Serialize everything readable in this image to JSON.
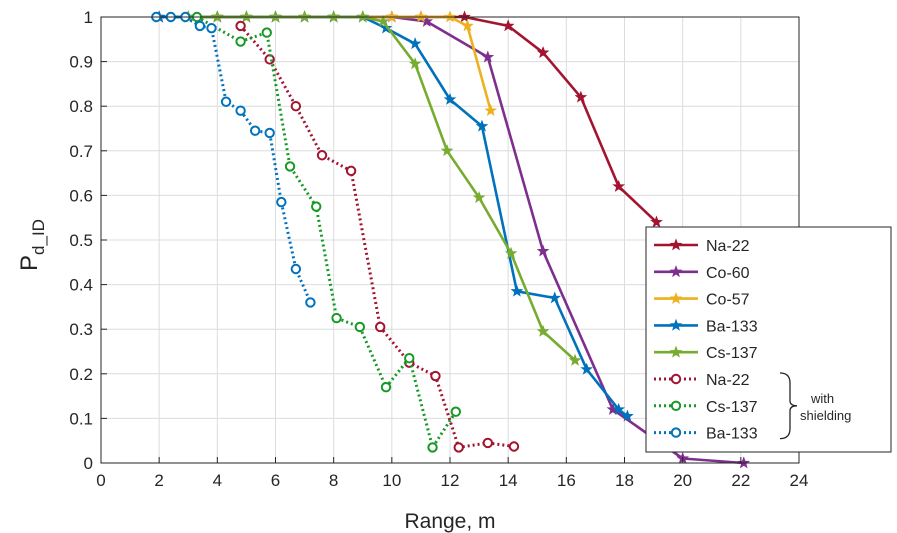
{
  "chart_data": {
    "type": "line",
    "title": "",
    "xlabel": "Range, m",
    "ylabel_main": "P",
    "ylabel_sub": "d_ID",
    "xlim": [
      0,
      24
    ],
    "ylim": [
      0,
      1
    ],
    "xticks": [
      0,
      2,
      4,
      6,
      8,
      10,
      12,
      14,
      16,
      18,
      20,
      22,
      24
    ],
    "yticks": [
      0,
      0.1,
      0.2,
      0.3,
      0.4,
      0.5,
      0.6,
      0.7,
      0.8,
      0.9,
      1
    ],
    "grid": true,
    "legend_position": "bottom-right",
    "legend_annotation": [
      "with",
      "shielding"
    ],
    "series": [
      {
        "name": "Na-22",
        "color": "#a2142f",
        "style": "solid",
        "marker": "star",
        "x": [
          2,
          3,
          4,
          5,
          6,
          7,
          8,
          9,
          10,
          11,
          12.5,
          14,
          15.2,
          16.5,
          17.8,
          19.1
        ],
        "y": [
          1,
          1,
          1,
          1,
          1,
          1,
          1,
          1,
          1,
          1,
          1,
          0.98,
          0.92,
          0.82,
          0.62,
          0.54
        ]
      },
      {
        "name": "Co-60",
        "color": "#7e2f8e",
        "style": "solid",
        "marker": "star",
        "x": [
          2,
          4,
          6,
          8,
          10,
          11.2,
          13.3,
          15.2,
          17.6,
          20,
          22.1
        ],
        "y": [
          1,
          1,
          1,
          1,
          1,
          0.99,
          0.91,
          0.475,
          0.12,
          0.01,
          0
        ]
      },
      {
        "name": "Co-57",
        "color": "#edb120",
        "style": "solid",
        "marker": "star",
        "x": [
          3,
          4,
          5,
          6,
          7,
          8,
          9,
          10,
          11,
          12,
          12.6,
          13.4
        ],
        "y": [
          1,
          1,
          1,
          1,
          1,
          1,
          1,
          1,
          1,
          1,
          0.98,
          0.79
        ]
      },
      {
        "name": "Ba-133",
        "color": "#0072bd",
        "style": "solid",
        "marker": "star",
        "x": [
          2,
          3,
          4,
          5,
          6,
          7,
          8,
          9,
          9.8,
          10.8,
          12,
          13.1,
          14.3,
          15.6,
          16.7,
          17.8,
          18.1
        ],
        "y": [
          1,
          1,
          1,
          1,
          1,
          1,
          1,
          1,
          0.975,
          0.94,
          0.815,
          0.755,
          0.385,
          0.37,
          0.21,
          0.12,
          0.105
        ]
      },
      {
        "name": "Cs-137",
        "color": "#77ac30",
        "style": "solid",
        "marker": "star",
        "x": [
          3,
          4,
          5,
          6,
          7,
          8,
          9,
          9.7,
          10.8,
          11.9,
          13,
          14.1,
          15.2,
          16.3
        ],
        "y": [
          1,
          1,
          1,
          1,
          1,
          1,
          1,
          0.99,
          0.895,
          0.7,
          0.595,
          0.47,
          0.295,
          0.23
        ]
      },
      {
        "name": "Na-22",
        "color": "#a2142f",
        "style": "dotted",
        "marker": "circle",
        "x": [
          4.8,
          5.8,
          6.7,
          7.6,
          8.6,
          9.6,
          10.6,
          11.5,
          12.3,
          13.3,
          14.2
        ],
        "y": [
          0.98,
          0.905,
          0.8,
          0.69,
          0.655,
          0.305,
          0.225,
          0.195,
          0.035,
          0.045,
          0.037
        ]
      },
      {
        "name": "Cs-137",
        "color": "#169926",
        "style": "dotted",
        "marker": "circle",
        "x": [
          3.3,
          4.8,
          5.7,
          6.5,
          7.4,
          8.1,
          8.9,
          9.8,
          10.6,
          11.4,
          12.2
        ],
        "y": [
          1,
          0.945,
          0.965,
          0.665,
          0.575,
          0.325,
          0.305,
          0.17,
          0.235,
          0.035,
          0.115
        ]
      },
      {
        "name": "Ba-133",
        "color": "#0072bd",
        "style": "dotted",
        "marker": "circle",
        "x": [
          1.9,
          2.4,
          2.9,
          3.4,
          3.8,
          4.3,
          4.8,
          5.3,
          5.8,
          6.2,
          6.7,
          7.2
        ],
        "y": [
          1,
          1,
          1,
          0.98,
          0.975,
          0.81,
          0.79,
          0.745,
          0.74,
          0.585,
          0.435,
          0.36
        ]
      }
    ]
  }
}
